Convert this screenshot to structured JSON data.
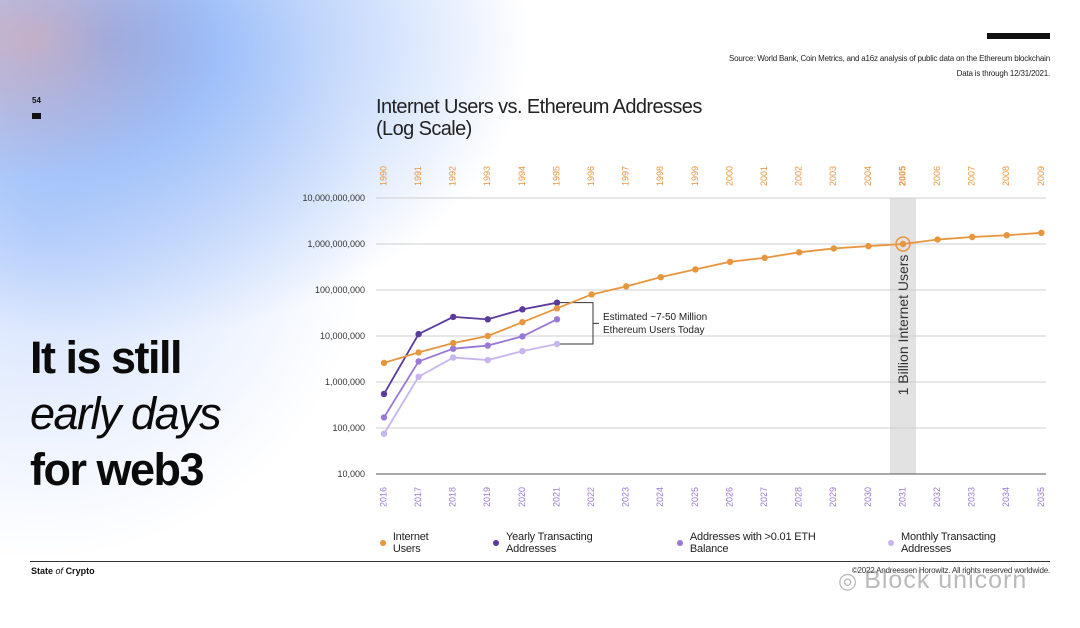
{
  "page": {
    "number": "54",
    "source_line1": "Source: World Bank, Coin Metrics, and a16z analysis of public data on the Ethereum blockchain",
    "source_line2": "Data is through 12/31/2021.",
    "headline_line1": "It is still",
    "headline_line2": "early days",
    "headline_line3": "for web3",
    "brand_bold1": "State",
    "brand_italic": "of",
    "brand_bold2": "Crypto",
    "copyright": "©2022 Andreessen Horowitz. All rights reserved worldwide.",
    "watermark": "Block unicorn",
    "watermark_icon": "wechat-icon"
  },
  "colors": {
    "internet_users": "#E8963E",
    "yearly_transacting": "#5B3A9E",
    "eth_balance": "#9A78D6",
    "monthly_transacting": "#C7B5F0",
    "top_axis": "#E8963E",
    "bottom_axis": "#9A78D6"
  },
  "chart_data": {
    "type": "line",
    "title_line1": "Internet Users vs. Ethereum Addresses",
    "title_line2": "(Log Scale)",
    "y_scale": "log",
    "ylim": [
      10000,
      10000000000
    ],
    "y_ticks": [
      {
        "value": 10000,
        "label": "10,000"
      },
      {
        "value": 100000,
        "label": "100,000"
      },
      {
        "value": 1000000,
        "label": "1,000,000"
      },
      {
        "value": 10000000,
        "label": "10,000,000"
      },
      {
        "value": 100000000,
        "label": "100,000,000"
      },
      {
        "value": 1000000000,
        "label": "1,000,000,000"
      },
      {
        "value": 10000000000,
        "label": "10,000,000,000"
      }
    ],
    "x_top": [
      "1990",
      "1991",
      "1992",
      "1993",
      "1994",
      "1995",
      "1996",
      "1997",
      "1998",
      "1999",
      "2000",
      "2001",
      "2002",
      "2003",
      "2004",
      "2005",
      "2006",
      "2007",
      "2008",
      "2009"
    ],
    "x_top_highlight": "2005",
    "x_bottom": [
      "2016",
      "2017",
      "2018",
      "2019",
      "2020",
      "2021",
      "2022",
      "2023",
      "2024",
      "2025",
      "2026",
      "2027",
      "2028",
      "2029",
      "2030",
      "2031",
      "2032",
      "2033",
      "2034",
      "2035"
    ],
    "grid": true,
    "legend_position": "bottom",
    "series": [
      {
        "name": "Internet Users",
        "color_key": "internet_users",
        "values": [
          2600000,
          4400000,
          7000000,
          10000000,
          20000000,
          40000000,
          80000000,
          120000000,
          190000000,
          280000000,
          410000000,
          500000000,
          660000000,
          800000000,
          900000000,
          1000000000,
          1250000000,
          1420000000,
          1550000000,
          1750000000
        ]
      },
      {
        "name": "Yearly Transacting Addresses",
        "color_key": "yearly_transacting",
        "values": [
          550000,
          11000000,
          26000000,
          23000000,
          38000000,
          53000000
        ]
      },
      {
        "name": "Addresses with >0.01 ETH Balance",
        "color_key": "eth_balance",
        "values": [
          170000,
          2800000,
          5300000,
          6200000,
          9800000,
          23000000
        ]
      },
      {
        "name": "Monthly Transacting Addresses",
        "color_key": "monthly_transacting",
        "values": [
          75000,
          1300000,
          3400000,
          3000000,
          4700000,
          6700000
        ]
      }
    ],
    "annotations": {
      "bracket_line1": "Estimated ~7-50 Million",
      "bracket_line2": "Ethereum Users Today",
      "billion_label": "1 Billion Internet Users"
    }
  }
}
